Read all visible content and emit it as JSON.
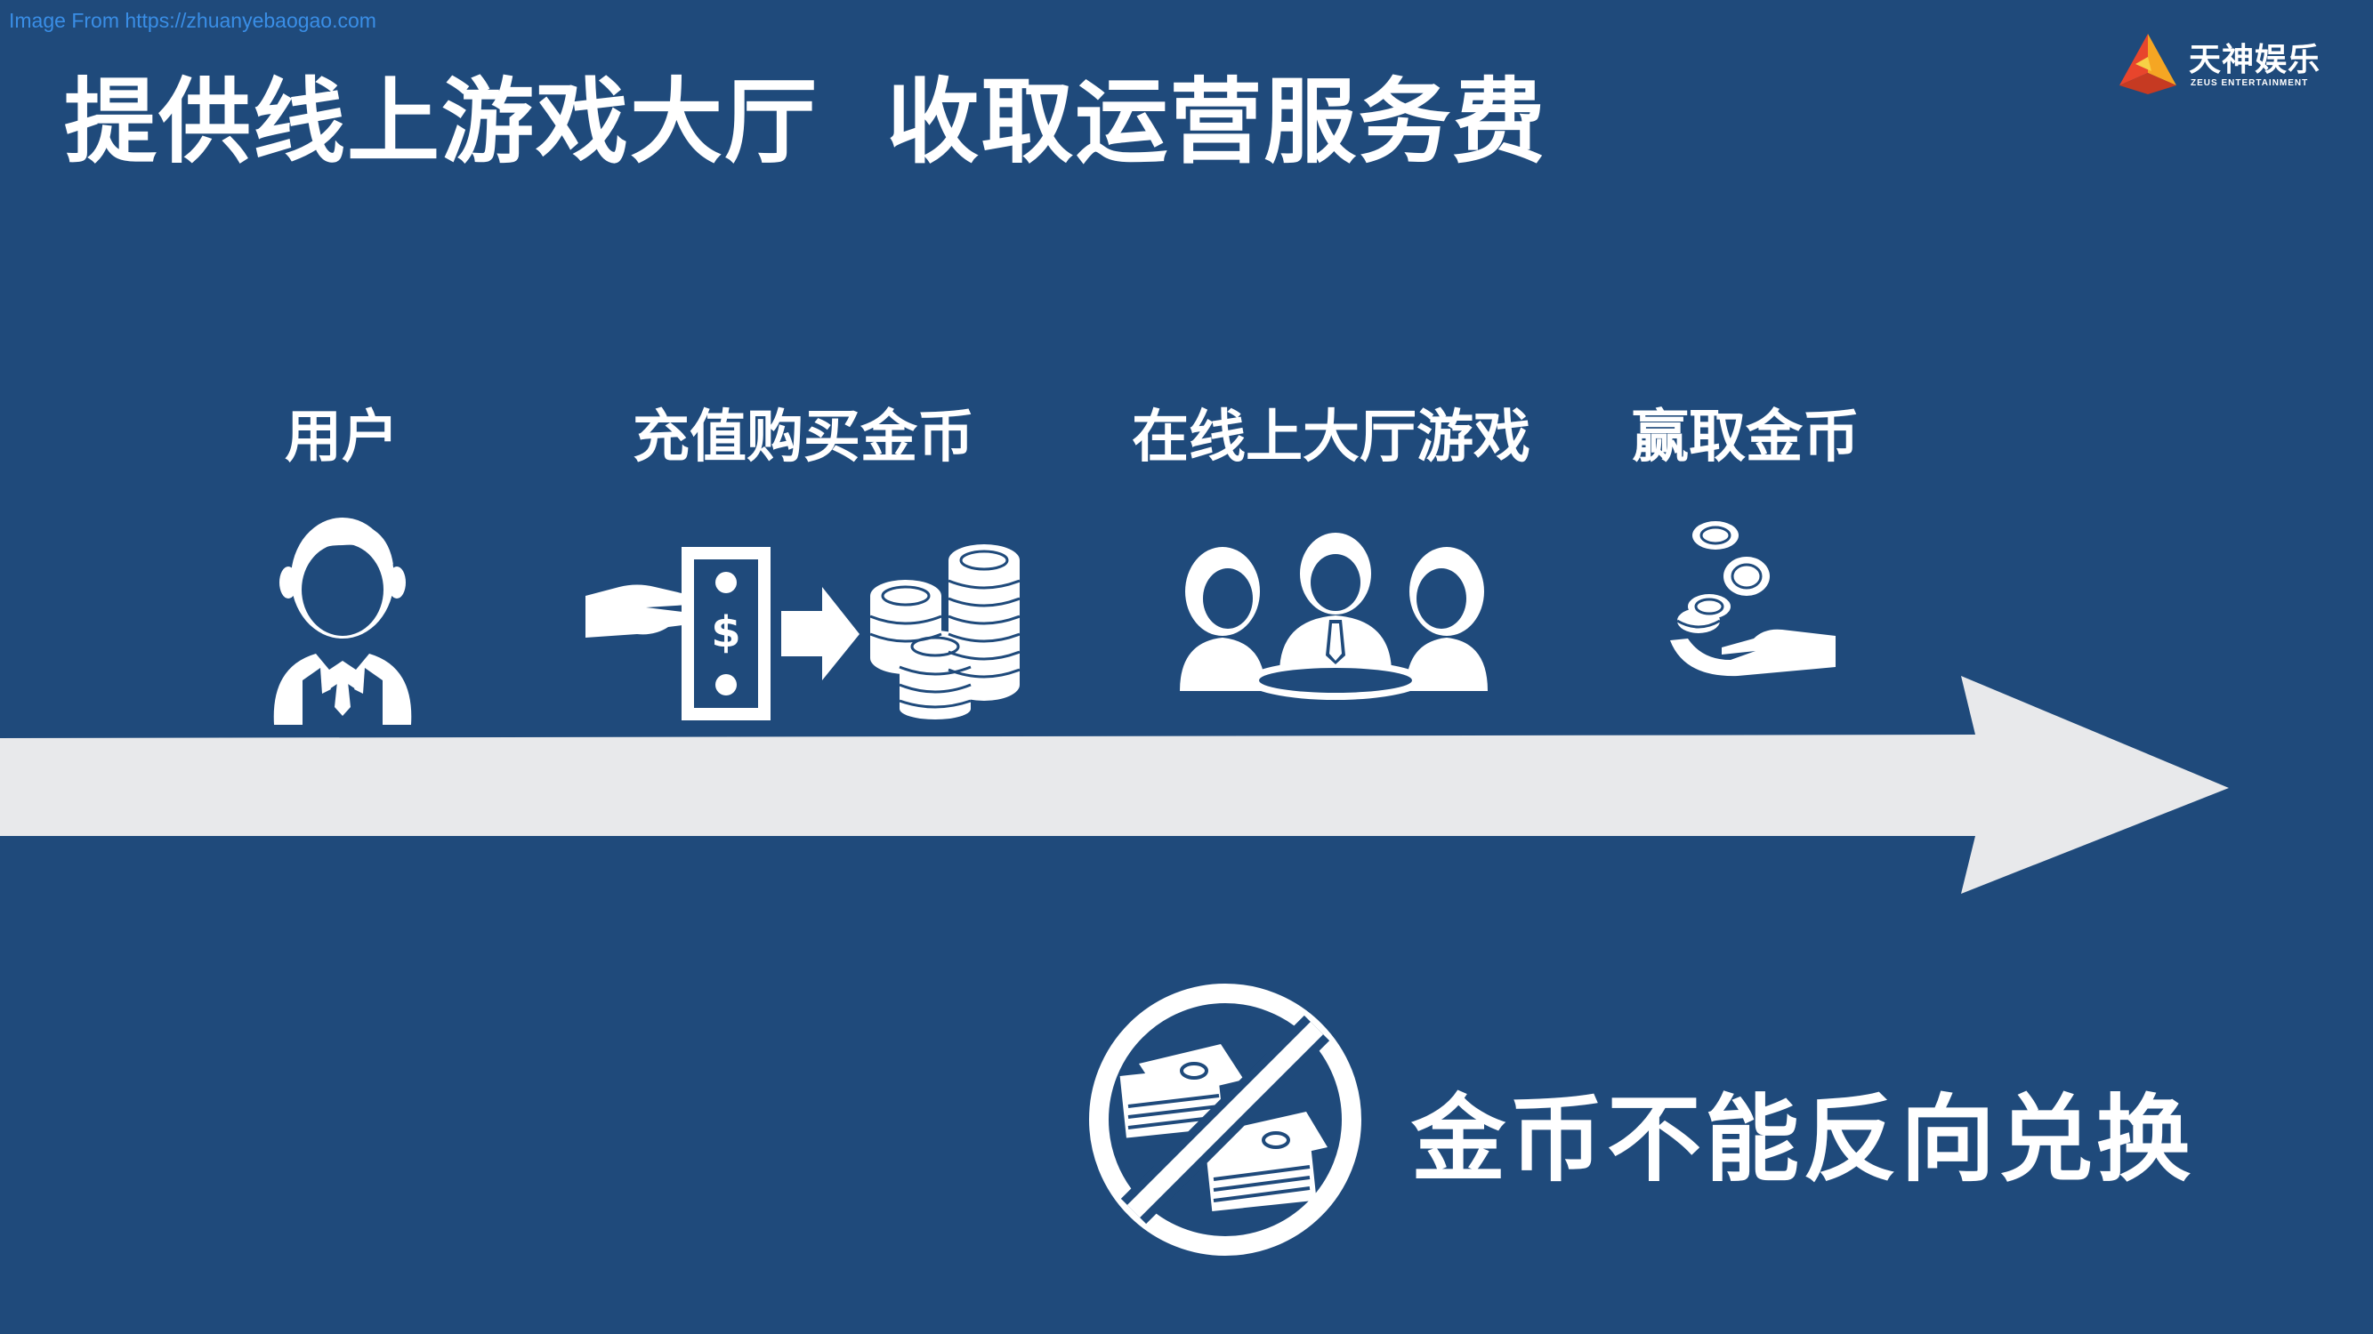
{
  "source_note": "Image From https://zhuanyebaogao.com",
  "title": "提供线上游戏大厅  收取运营服务费",
  "logo": {
    "name": "天神娱乐",
    "subtitle": "ZEUS ENTERTAINMENT",
    "colors": [
      "#f5a623",
      "#e8452c",
      "#f7d046"
    ]
  },
  "steps": [
    {
      "label": "用户",
      "icon": "user-icon"
    },
    {
      "label": "充值购买金币",
      "icon": "money-to-coins-icon"
    },
    {
      "label": "在线上大厅游戏",
      "icon": "players-table-icon"
    },
    {
      "label": "赢取金币",
      "icon": "hand-coins-icon"
    }
  ],
  "notice": {
    "text": "金币不能反向兑换",
    "icon": "no-cash-exchange-icon"
  },
  "colors": {
    "background": "#1f4a7b",
    "arrow": "#e8e9eb",
    "text": "#ffffff"
  }
}
